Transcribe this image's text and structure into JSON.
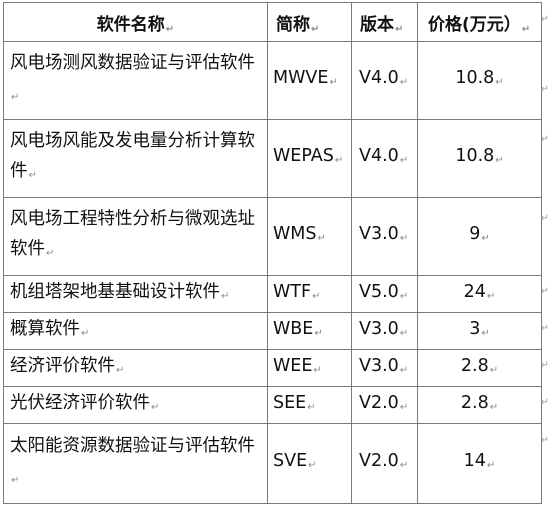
{
  "table": {
    "headers": {
      "name": "软件名称",
      "abbr": "简称",
      "version": "版本",
      "price": "价格(万元）"
    },
    "rows": [
      {
        "name": "风电场测风数据验证与评估软件",
        "abbr": "MWVE",
        "version": "V4.0",
        "price": "10.8"
      },
      {
        "name": "风电场风能及发电量分析计算软件",
        "abbr": "WEPAS",
        "version": "V4.0",
        "price": "10.8"
      },
      {
        "name": "风电场工程特性分析与微观选址软件",
        "abbr": "WMS",
        "version": "V3.0",
        "price": "9"
      },
      {
        "name": "机组塔架地基基础设计软件",
        "abbr": "WTF",
        "version": "V5.0",
        "price": "24"
      },
      {
        "name": "概算软件",
        "abbr": "WBE",
        "version": "V3.0",
        "price": "3"
      },
      {
        "name": "经济评价软件",
        "abbr": "WEE",
        "version": "V3.0",
        "price": "2.8"
      },
      {
        "name": "光伏经济评价软件",
        "abbr": "SEE",
        "version": "V2.0",
        "price": "2.8"
      },
      {
        "name": "太阳能资源数据验证与评估软件",
        "abbr": "SVE",
        "version": "V2.0",
        "price": "14"
      }
    ]
  }
}
